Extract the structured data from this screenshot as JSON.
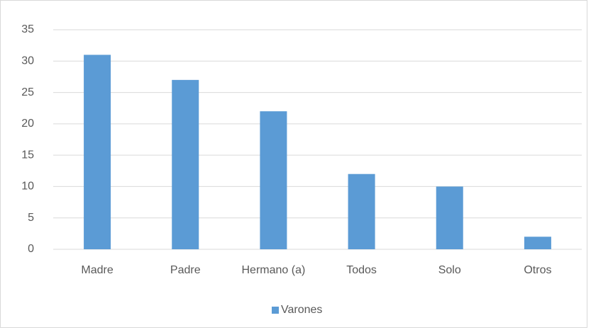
{
  "chart_data": {
    "type": "bar",
    "categories": [
      "Madre",
      "Padre",
      "Hermano (a)",
      "Todos",
      "Solo",
      "Otros"
    ],
    "series": [
      {
        "name": "Varones",
        "color": "#5b9bd5",
        "values": [
          31,
          27,
          22,
          12,
          10,
          2
        ]
      }
    ],
    "ylim": [
      0,
      35
    ],
    "yticks": [
      0,
      5,
      10,
      15,
      20,
      25,
      30,
      35
    ],
    "grid": true,
    "legend": "bottom"
  }
}
